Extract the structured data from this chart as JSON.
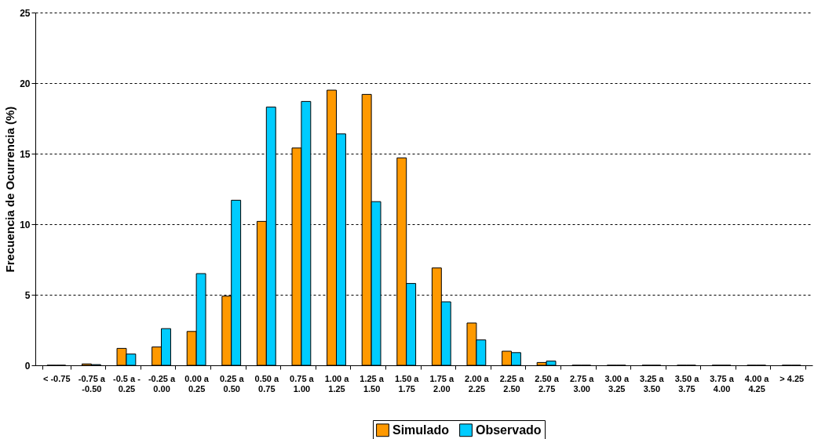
{
  "chart_data": {
    "type": "bar",
    "ylabel": "Frecuencia de Ocurrencia (%)",
    "categories": [
      "< -0.75",
      "-0.75 a\n-0.50",
      "-0.5 a -\n0.25",
      "-0.25 a\n0.00",
      "0.00 a\n0.25",
      "0.25 a\n0.50",
      "0.50 a\n0.75",
      "0.75 a\n1.00",
      "1.00 a\n1.25",
      "1.25 a\n1.50",
      "1.50 a\n1.75",
      "1.75 a\n2.00",
      "2.00 a\n2.25",
      "2.25 a\n2.50",
      "2.50 a\n2.75",
      "2.75 a\n3.00",
      "3.00 a\n3.25",
      "3.25 a\n3.50",
      "3.50 a\n3.75",
      "3.75 a\n4.00",
      "4.00 a\n4.25",
      "> 4.25"
    ],
    "series": [
      {
        "name": "Simulado",
        "color": "#ff9900",
        "values": [
          0,
          0.1,
          1.2,
          1.3,
          2.4,
          4.9,
          10.2,
          15.4,
          19.5,
          19.2,
          14.7,
          6.9,
          3.0,
          1.0,
          0.2,
          0,
          0,
          0,
          0,
          0,
          0,
          0
        ]
      },
      {
        "name": "Observado",
        "color": "#00ccff",
        "values": [
          0,
          0.05,
          0.8,
          2.6,
          6.5,
          11.7,
          18.3,
          18.7,
          16.4,
          11.6,
          5.8,
          4.5,
          1.8,
          0.9,
          0.3,
          0,
          0,
          0,
          0,
          0,
          0,
          0
        ]
      }
    ],
    "ylim": [
      0,
      25
    ],
    "yticks": [
      0,
      5,
      10,
      15,
      20,
      25
    ],
    "grid": "y",
    "legend": "bottom"
  }
}
